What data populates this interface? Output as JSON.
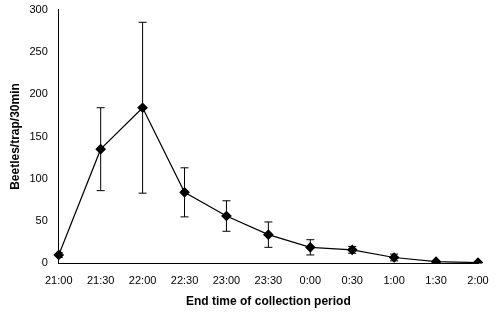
{
  "chart_data": {
    "type": "line",
    "x_label": "End time of collection period",
    "y_label": "Beetles/trap/30min",
    "categories": [
      "21:00",
      "21:30",
      "22:00",
      "22:30",
      "23:00",
      "23:30",
      "0:00",
      "0:30",
      "1:00",
      "1:30",
      "2:00"
    ],
    "values": [
      10,
      135,
      184,
      84,
      56,
      34,
      19,
      16,
      7,
      2,
      1
    ],
    "errors": [
      3,
      49,
      101,
      29,
      18,
      15,
      9,
      4,
      4,
      1,
      0.5
    ],
    "color": "#000000",
    "marker": "diamond",
    "line_style": "solid",
    "ylim": [
      0,
      300
    ],
    "yticks": [
      0,
      50,
      100,
      150,
      200,
      250,
      300
    ],
    "grid": false
  }
}
